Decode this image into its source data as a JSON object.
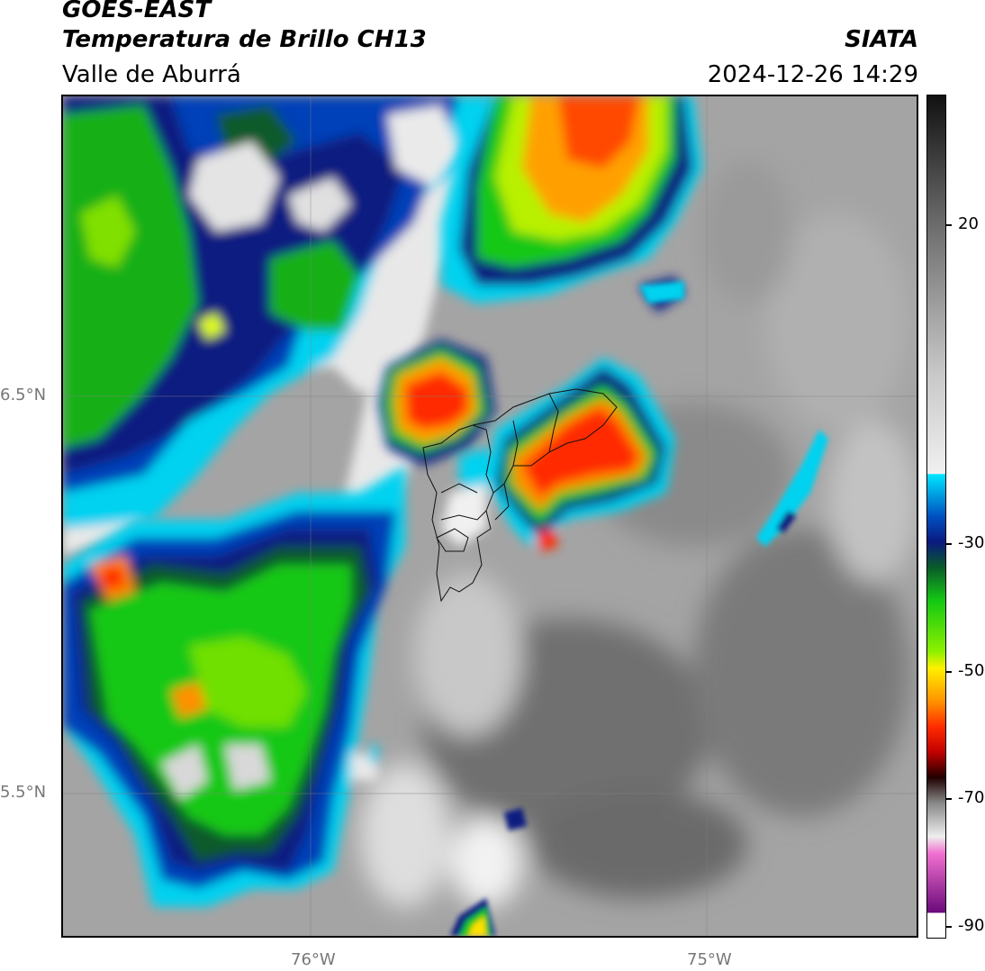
{
  "header": {
    "satellite": "GOES-EAST",
    "product": "Temperatura de Brillo CH13",
    "region": "Valle de Aburrá",
    "organization": "SIATA",
    "datetime": "2024-12-26 14:29"
  },
  "axes": {
    "lat_labels": [
      "6.5°N",
      "5.5°N"
    ],
    "lon_labels": [
      "76°W",
      "75°W"
    ]
  },
  "colorbar": {
    "ticks": [
      "20",
      "-30",
      "-50",
      "-70",
      "-90"
    ],
    "stops": [
      {
        "pos": 0,
        "color": "#111111"
      },
      {
        "pos": 0.15,
        "color": "#6a6a6a"
      },
      {
        "pos": 0.33,
        "color": "#c8c8c8"
      },
      {
        "pos": 0.449,
        "color": "#f0f0f0"
      },
      {
        "pos": 0.45,
        "color": "#00e5ff"
      },
      {
        "pos": 0.5,
        "color": "#0050c0"
      },
      {
        "pos": 0.53,
        "color": "#0a1a80"
      },
      {
        "pos": 0.56,
        "color": "#0a5a2a"
      },
      {
        "pos": 0.6,
        "color": "#14c814"
      },
      {
        "pos": 0.66,
        "color": "#8cf000"
      },
      {
        "pos": 0.68,
        "color": "#fff000"
      },
      {
        "pos": 0.72,
        "color": "#ff9000"
      },
      {
        "pos": 0.75,
        "color": "#ff2a00"
      },
      {
        "pos": 0.78,
        "color": "#c00000"
      },
      {
        "pos": 0.81,
        "color": "#200000"
      },
      {
        "pos": 0.84,
        "color": "#888888"
      },
      {
        "pos": 0.88,
        "color": "#eeeeee"
      },
      {
        "pos": 0.9,
        "color": "#f070d0"
      },
      {
        "pos": 0.97,
        "color": "#6a0a7a"
      },
      {
        "pos": 0.971,
        "color": "#ffffff"
      },
      {
        "pos": 1,
        "color": "#ffffff"
      }
    ]
  }
}
